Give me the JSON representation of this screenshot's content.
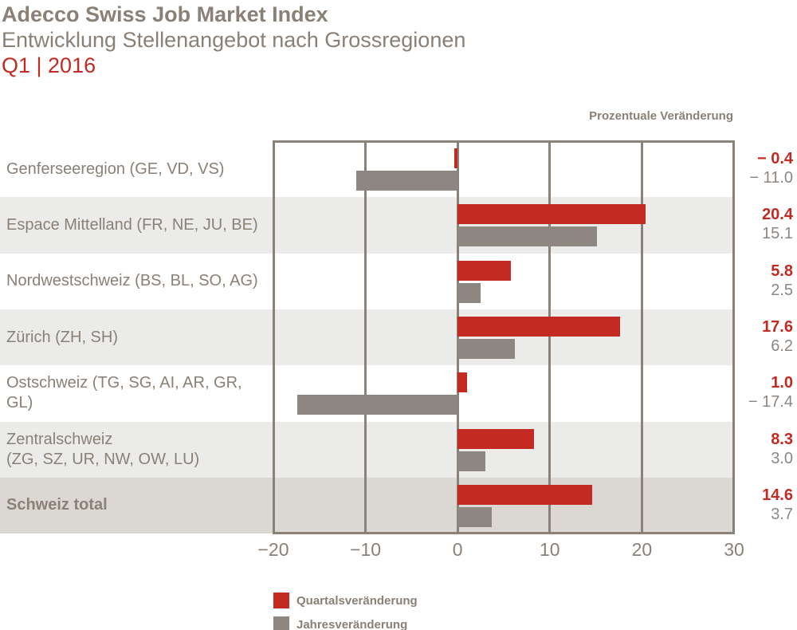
{
  "header": {
    "title": "Adecco Swiss Job Market Index",
    "subtitle": "Entwicklung Stellenangebot nach Grossregionen",
    "period": "Q1 | 2016"
  },
  "axis_note": "Prozentuale Veränderung",
  "legend": [
    {
      "label": "Quartalsveränderung",
      "color": "#c32a22"
    },
    {
      "label": "Jahresveränderung",
      "color": "#8d8681"
    }
  ],
  "colors": {
    "accent_red": "#c32a22",
    "bar_gray": "#8d8681",
    "frame_gray": "#8a8179",
    "text_gray": "#8a8076",
    "row_alt_bg": "#ebebea",
    "row_total_bg": "#dbd8d4",
    "background": "#ffffff"
  },
  "chart_data": {
    "type": "bar",
    "orientation": "horizontal",
    "title": "Entwicklung Stellenangebot nach Grossregionen",
    "subtitle_period": "Q1 | 2016",
    "xlabel": "Prozentuale Veränderung",
    "xlim": [
      -20,
      30
    ],
    "grid": true,
    "legend_position": "bottom-left",
    "ticks": [
      {
        "value": -20,
        "label": "−20"
      },
      {
        "value": -10,
        "label": "−10"
      },
      {
        "value": 0,
        "label": "0"
      },
      {
        "value": 10,
        "label": "10"
      },
      {
        "value": 20,
        "label": "20"
      },
      {
        "value": 30,
        "label": "30"
      }
    ],
    "series": [
      {
        "name": "Quartalsveränderung",
        "color": "#c32a22",
        "values": [
          -0.4,
          20.4,
          5.8,
          17.6,
          1.0,
          8.3,
          14.6
        ]
      },
      {
        "name": "Jahresveränderung",
        "color": "#8d8681",
        "values": [
          -11.0,
          15.1,
          2.5,
          6.2,
          -17.4,
          3.0,
          3.7
        ]
      }
    ],
    "rows": [
      {
        "label": "Genferseeregion (GE, VD, VS)",
        "sublabel": "",
        "quarterly": -0.4,
        "yearly": -11.0,
        "quarterly_label": "− 0.4",
        "yearly_label": "− 11.0",
        "stripe": "none",
        "is_total": false
      },
      {
        "label": "Espace Mittelland (FR, NE, JU, BE)",
        "sublabel": "",
        "quarterly": 20.4,
        "yearly": 15.1,
        "quarterly_label": "20.4",
        "yearly_label": "15.1",
        "stripe": "alt",
        "is_total": false
      },
      {
        "label": "Nordwestschweiz (BS, BL, SO, AG)",
        "sublabel": "",
        "quarterly": 5.8,
        "yearly": 2.5,
        "quarterly_label": "5.8",
        "yearly_label": "2.5",
        "stripe": "none",
        "is_total": false
      },
      {
        "label": "Zürich (ZH, SH)",
        "sublabel": "",
        "quarterly": 17.6,
        "yearly": 6.2,
        "quarterly_label": "17.6",
        "yearly_label": "6.2",
        "stripe": "alt",
        "is_total": false
      },
      {
        "label": "Ostschweiz (TG, SG, AI, AR, GR, GL)",
        "sublabel": "",
        "quarterly": 1.0,
        "yearly": -17.4,
        "quarterly_label": "1.0",
        "yearly_label": "− 17.4",
        "stripe": "none",
        "is_total": false
      },
      {
        "label": "Zentralschweiz",
        "sublabel": "(ZG, SZ, UR, NW, OW, LU)",
        "quarterly": 8.3,
        "yearly": 3.0,
        "quarterly_label": "8.3",
        "yearly_label": "3.0",
        "stripe": "alt",
        "is_total": false
      },
      {
        "label": "Schweiz total",
        "sublabel": "",
        "quarterly": 14.6,
        "yearly": 3.7,
        "quarterly_label": "14.6",
        "yearly_label": "3.7",
        "stripe": "total",
        "is_total": true
      }
    ]
  }
}
